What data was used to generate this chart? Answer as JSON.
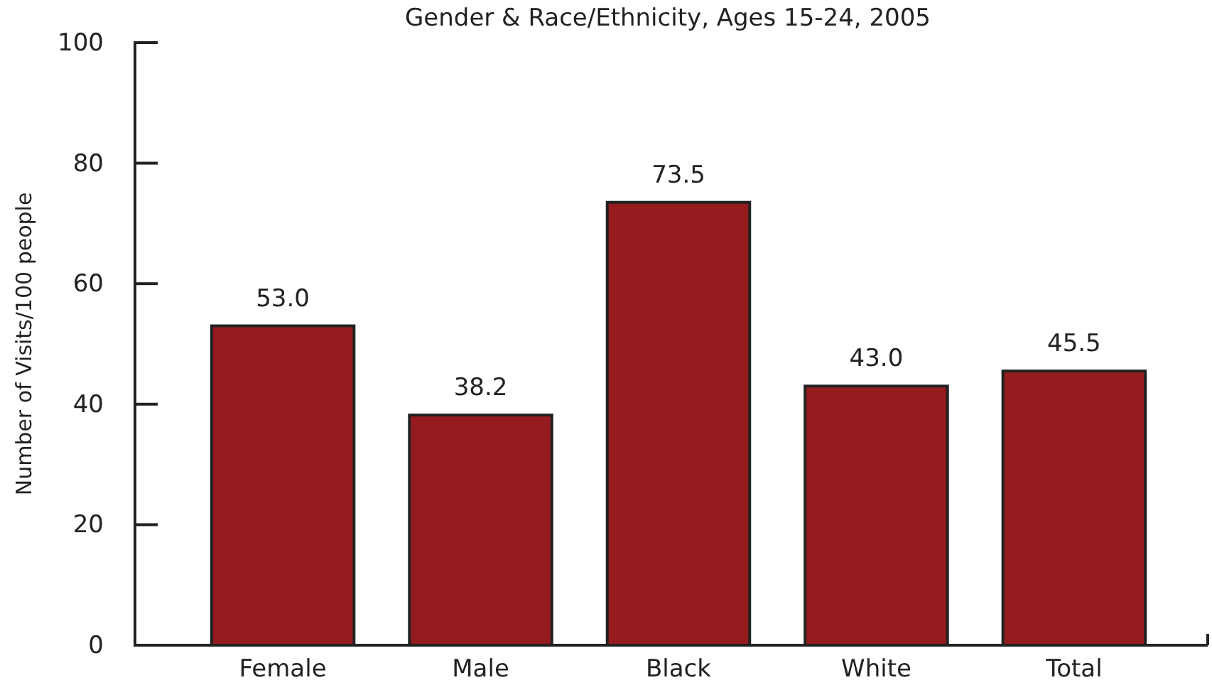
{
  "chart_data": {
    "type": "bar",
    "title": "Gender & Race/Ethnicity, Ages 15-24, 2005",
    "ylabel": "Number of Visits/100 people",
    "categories": [
      "Female",
      "Male",
      "Black",
      "White",
      "Total"
    ],
    "values": [
      53.0,
      38.2,
      73.5,
      43.0,
      45.5
    ],
    "value_labels": [
      "53.0",
      "38.2",
      "73.5",
      "43.0",
      "45.5"
    ],
    "color": "#951b1f",
    "ylim": [
      0,
      100
    ],
    "yticks": [
      0,
      20,
      40,
      60,
      80,
      100
    ],
    "grid": false
  }
}
